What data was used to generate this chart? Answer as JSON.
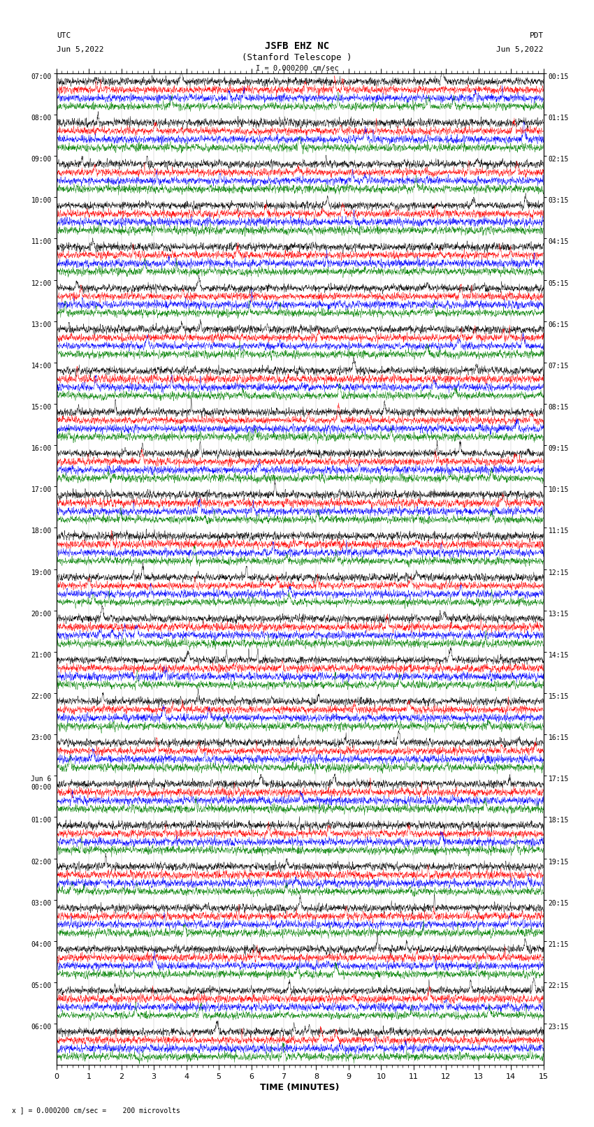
{
  "title_line1": "JSFB EHZ NC",
  "title_line2": "(Stanford Telescope )",
  "scale_text": "I = 0.000200 cm/sec",
  "xlabel": "TIME (MINUTES)",
  "bottom_note": "x ] = 0.000200 cm/sec =    200 microvolts",
  "utc_times": [
    "07:00",
    "08:00",
    "09:00",
    "10:00",
    "11:00",
    "12:00",
    "13:00",
    "14:00",
    "15:00",
    "16:00",
    "17:00",
    "18:00",
    "19:00",
    "20:00",
    "21:00",
    "22:00",
    "23:00",
    "Jun 6\n00:00",
    "01:00",
    "02:00",
    "03:00",
    "04:00",
    "05:00",
    "06:00"
  ],
  "pdt_times": [
    "00:15",
    "01:15",
    "02:15",
    "03:15",
    "04:15",
    "05:15",
    "06:15",
    "07:15",
    "08:15",
    "09:15",
    "10:15",
    "11:15",
    "12:15",
    "13:15",
    "14:15",
    "15:15",
    "16:15",
    "17:15",
    "18:15",
    "19:15",
    "20:15",
    "21:15",
    "22:15",
    "23:15"
  ],
  "colors": [
    "black",
    "red",
    "blue",
    "green"
  ],
  "bg_color": "white",
  "fig_width": 8.5,
  "fig_height": 16.13,
  "xlim": [
    0,
    15
  ],
  "xticks": [
    0,
    1,
    2,
    3,
    4,
    5,
    6,
    7,
    8,
    9,
    10,
    11,
    12,
    13,
    14,
    15
  ],
  "num_rows": 24,
  "noise_amp": 0.1,
  "channel_sep": 0.2
}
